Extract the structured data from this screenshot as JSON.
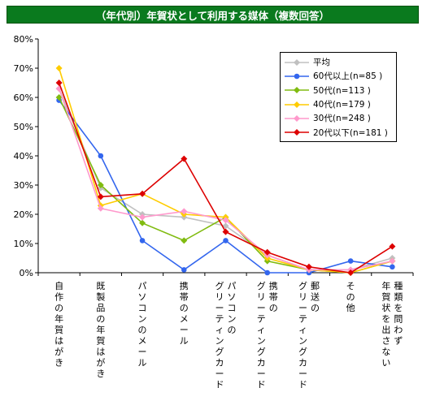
{
  "chart_data": {
    "type": "line",
    "title": "（年代別）年賀状として利用する媒体（複数回答）",
    "xlabel": "",
    "ylabel": "",
    "ylim": [
      0,
      80
    ],
    "yticks": [
      "0%",
      "10%",
      "20%",
      "30%",
      "40%",
      "50%",
      "60%",
      "70%",
      "80%"
    ],
    "grid": false,
    "legend_position": "top-right",
    "categories": [
      [
        "自作の年賀はがき"
      ],
      [
        "既製品の年賀はがき"
      ],
      [
        "パソコンのメール"
      ],
      [
        "携帯のメール"
      ],
      [
        "パソコンの",
        "グリーティングカード"
      ],
      [
        "携帯の",
        "グリーティングカード"
      ],
      [
        "郵送の",
        "グリーティングカード"
      ],
      [
        "その他"
      ],
      [
        "種類を問わず",
        "年賀状を出さない"
      ]
    ],
    "series": [
      {
        "name": "平均",
        "color": "#c0c0c0",
        "marker": "diamond",
        "values": [
          63,
          29,
          20,
          19,
          16,
          6,
          1,
          1,
          5
        ]
      },
      {
        "name": "60代以上(n=85 )",
        "color": "#3366ee",
        "marker": "circle",
        "values": [
          59,
          40,
          11,
          1,
          11,
          0,
          0,
          4,
          2
        ]
      },
      {
        "name": "50代(n=113 )",
        "color": "#80bb10",
        "marker": "diamond",
        "values": [
          60,
          30,
          17,
          11,
          19,
          4,
          1,
          0,
          4
        ]
      },
      {
        "name": "40代(n=179 )",
        "color": "#ffcc00",
        "marker": "diamond",
        "values": [
          70,
          23,
          27,
          20,
          19,
          5,
          1,
          0,
          4
        ]
      },
      {
        "name": "30代(n=248 )",
        "color": "#ff99cc",
        "marker": "diamond",
        "values": [
          63,
          22,
          19,
          21,
          18,
          6,
          1,
          1,
          4
        ]
      },
      {
        "name": "20代以下(n=181 )",
        "color": "#dd0000",
        "marker": "diamond",
        "values": [
          65,
          26,
          27,
          39,
          14,
          7,
          2,
          0,
          9
        ]
      }
    ]
  }
}
